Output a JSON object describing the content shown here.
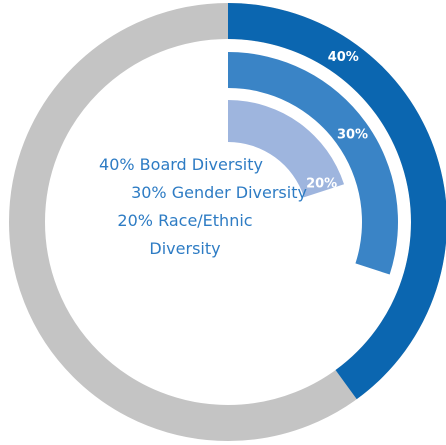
{
  "chart_data": {
    "type": "radial_bar",
    "ylim": [
      0,
      100
    ],
    "track_color": "#c4c4c4",
    "series": [
      {
        "name": "40% Board Diversity",
        "color": "#0b66b0",
        "values": [
          40
        ],
        "value_labels": [
          "40%"
        ]
      },
      {
        "name": "30% Gender Diversity",
        "color": "#3a84c6",
        "values": [
          30
        ],
        "value_labels": [
          "30%"
        ]
      },
      {
        "name": "20% Race/Ethnic Diversity",
        "color": "#9eb5de",
        "values": [
          20
        ],
        "value_labels": [
          "20%"
        ]
      }
    ]
  }
}
